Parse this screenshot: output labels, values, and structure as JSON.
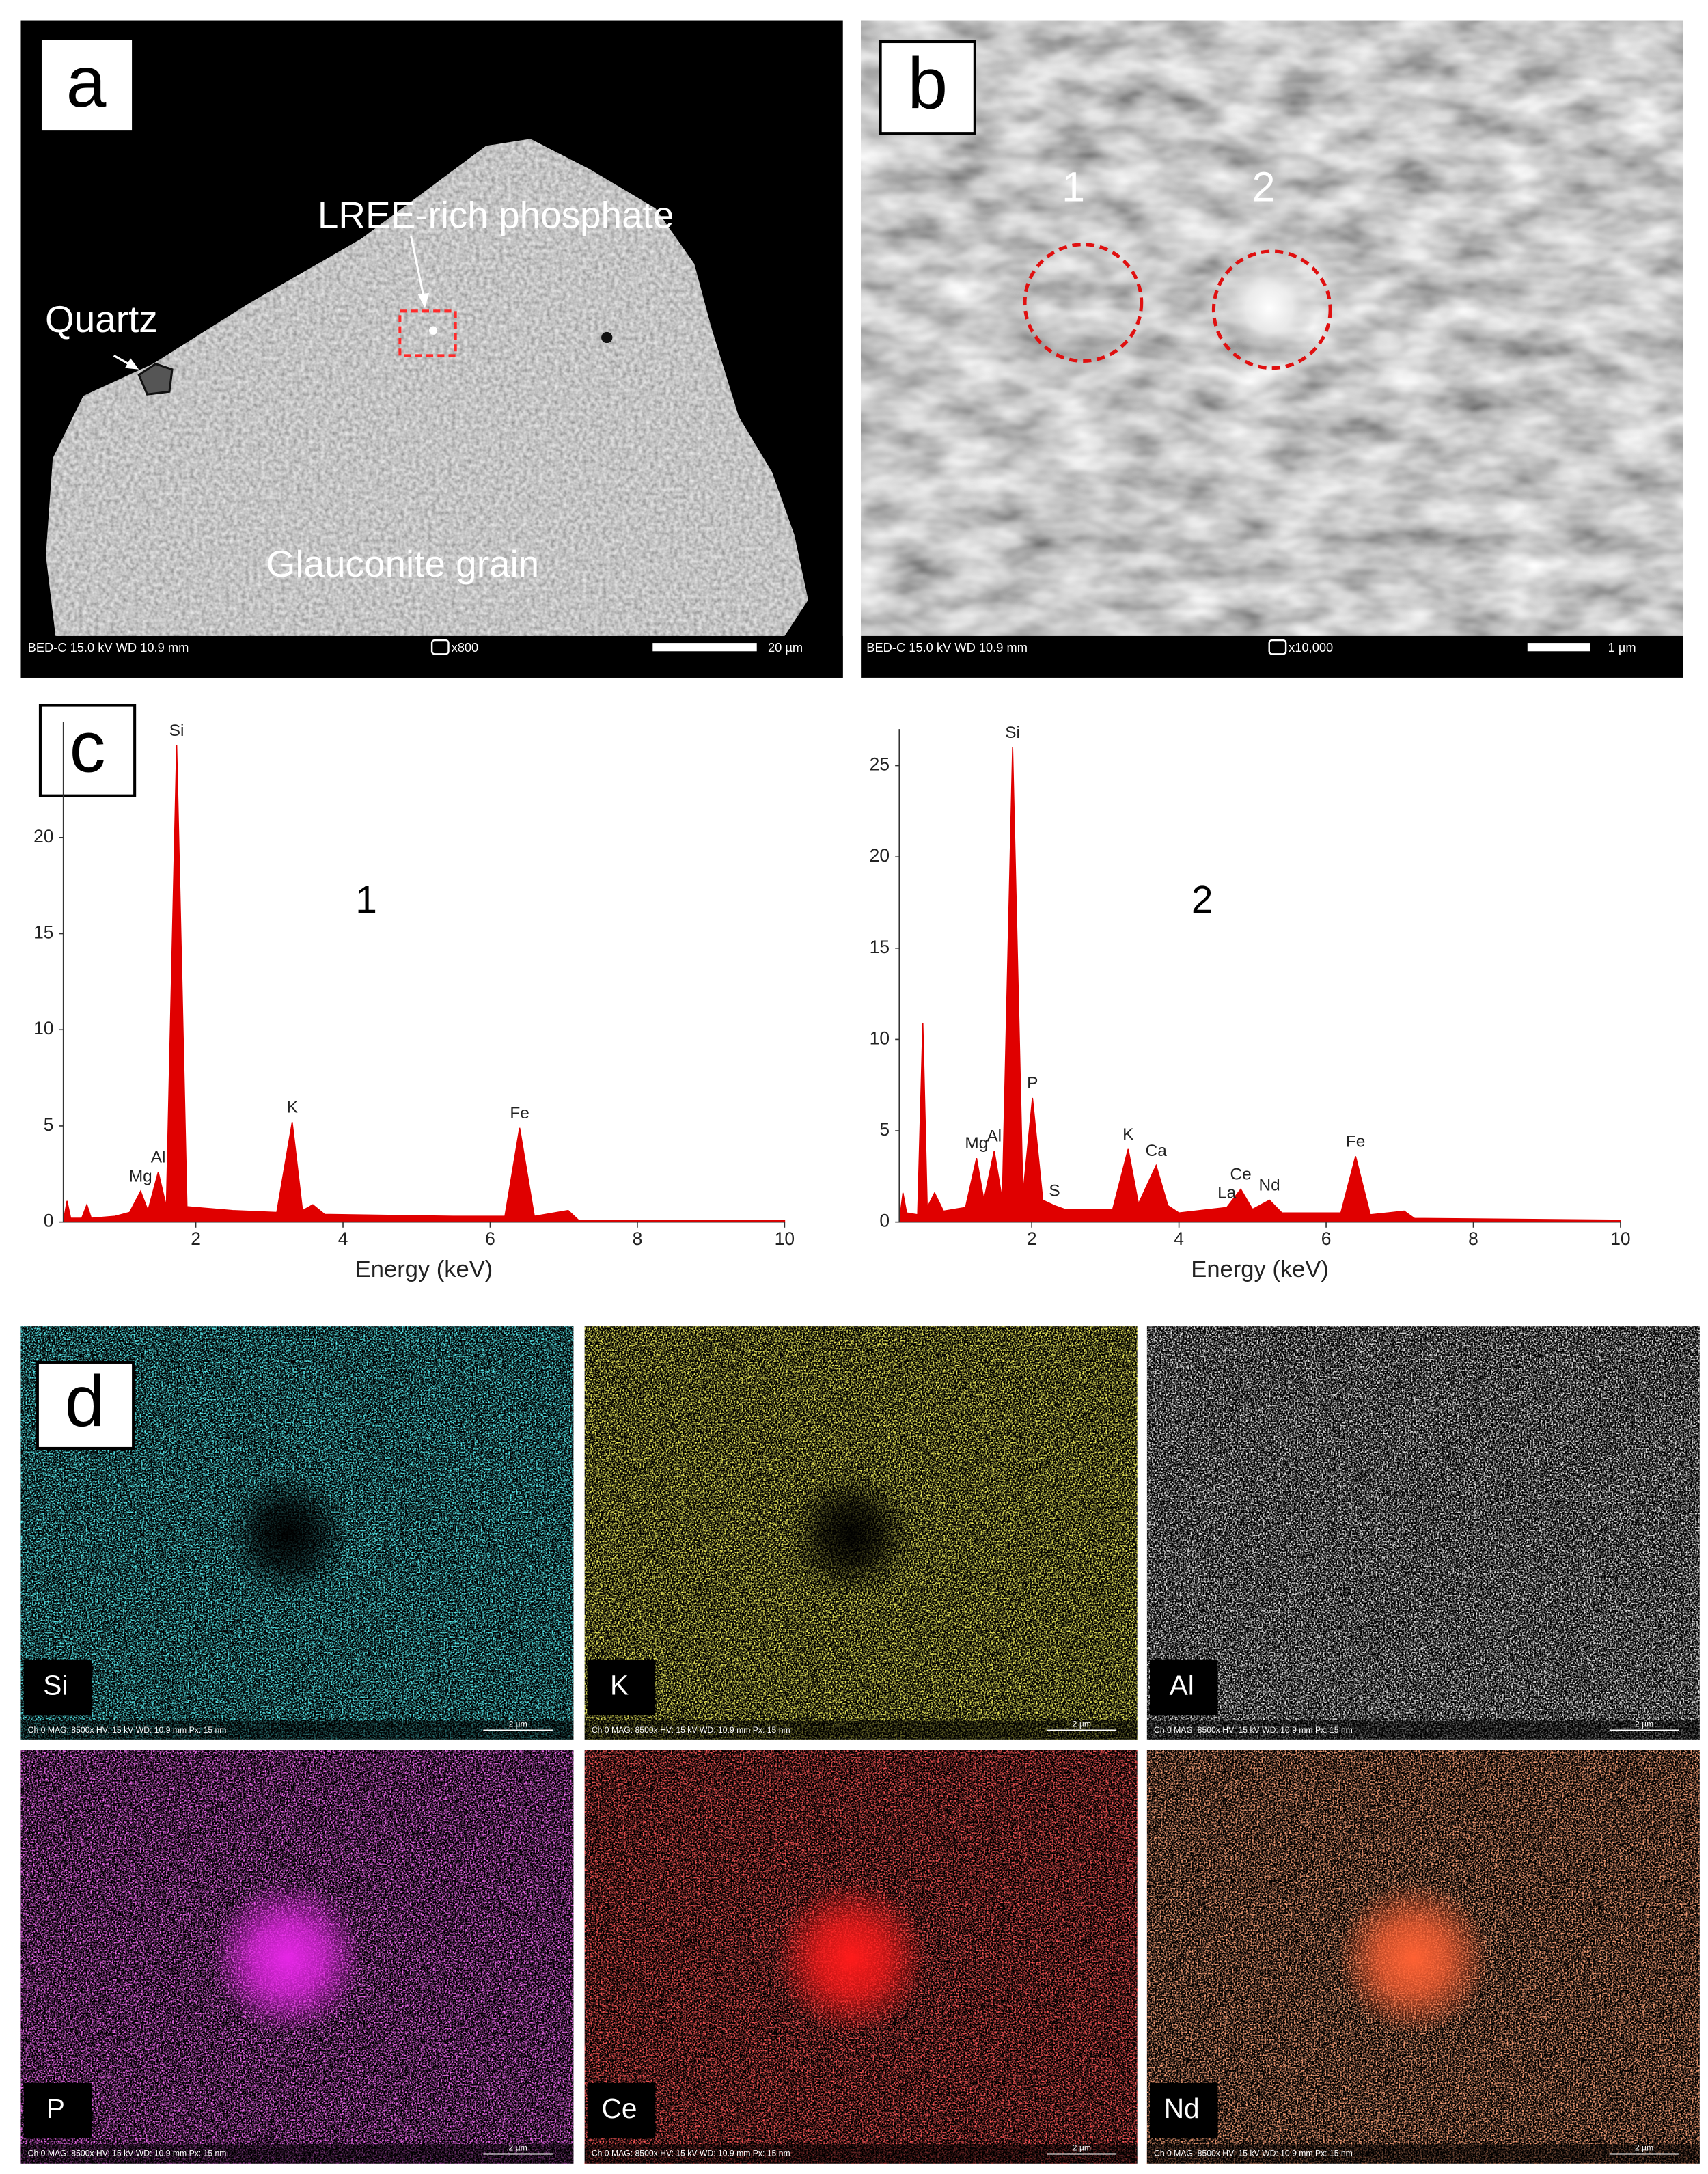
{
  "panels": {
    "a": {
      "label": "a",
      "annotations": [
        "LREE-rich phosphate",
        "Quartz",
        "Glauconite grain"
      ],
      "footer": {
        "info": "BED-C  15.0 kV  WD 10.9 mm",
        "magnification": "x800",
        "scale": "20 µm"
      }
    },
    "b": {
      "label": "b",
      "spots": [
        "1",
        "2"
      ],
      "footer": {
        "info": "BED-C  15.0 kV  WD 10.9 mm",
        "magnification": "x10,000",
        "scale": "1 µm"
      }
    },
    "c": {
      "label": "c"
    },
    "d": {
      "label": "d",
      "maps": [
        {
          "element": "Si",
          "footer": "Ch 0   MAG: 8500x   HV: 15 kV   WD: 10.9 mm   Px: 15 nm",
          "scale": "2 µm"
        },
        {
          "element": "K",
          "footer": "Ch 0   MAG: 8500x   HV: 15 kV   WD: 10.9 mm   Px: 15 nm",
          "scale": "2 µm"
        },
        {
          "element": "Al",
          "footer": "Ch 0   MAG: 8500x   HV: 15 kV   WD: 10.9 mm   Px: 15 nm",
          "scale": "2 µm"
        },
        {
          "element": "P",
          "footer": "Ch 0   MAG: 8500x   HV: 15 kV   WD: 10.9 mm   Px: 15 nm",
          "scale": "2 µm"
        },
        {
          "element": "Ce",
          "footer": "Ch 0   MAG: 8500x   HV: 15 kV   WD: 10.9 mm   Px: 15 nm",
          "scale": "2 µm"
        },
        {
          "element": "Nd",
          "footer": "Ch 0   MAG: 8500x   HV: 15 kV   WD: 10.9 mm   Px: 15 nm",
          "scale": "2 µm"
        }
      ]
    }
  },
  "chart_data": [
    {
      "type": "area",
      "title": "1",
      "xlabel": "Energy (keV)",
      "color": "#e00000",
      "x": [
        0.2,
        0.25,
        0.3,
        0.45,
        0.52,
        0.58,
        0.9,
        1.1,
        1.25,
        1.35,
        1.49,
        1.6,
        1.74,
        1.88,
        2.5,
        3.1,
        3.31,
        3.45,
        3.59,
        3.75,
        5.5,
        6.2,
        6.4,
        6.6,
        7.06,
        7.2,
        10
      ],
      "values": [
        0,
        1.1,
        0.2,
        0.2,
        0.9,
        0.2,
        0.3,
        0.5,
        1.6,
        0.6,
        2.6,
        0.8,
        24.8,
        0.8,
        0.6,
        0.5,
        5.2,
        0.6,
        0.9,
        0.4,
        0.3,
        0.3,
        4.9,
        0.3,
        0.6,
        0.1,
        0.1
      ],
      "xlim": [
        0.2,
        10
      ],
      "ylim": [
        0,
        26
      ],
      "xticks": [
        2,
        4,
        6,
        8,
        10
      ],
      "yticks": [
        0,
        5,
        10,
        15,
        20
      ],
      "peaks": [
        {
          "label": "Mg",
          "energy": 1.25
        },
        {
          "label": "Al",
          "energy": 1.49
        },
        {
          "label": "Si",
          "energy": 1.74
        },
        {
          "label": "K",
          "energy": 3.31
        },
        {
          "label": "Fe",
          "energy": 6.4
        }
      ]
    },
    {
      "type": "area",
      "title": "2",
      "xlabel": "Energy (keV)",
      "color": "#e00000",
      "x": [
        0.2,
        0.25,
        0.3,
        0.45,
        0.52,
        0.58,
        0.68,
        0.8,
        1.1,
        1.25,
        1.35,
        1.49,
        1.6,
        1.74,
        1.88,
        2.01,
        2.15,
        2.31,
        2.45,
        3.1,
        3.31,
        3.45,
        3.69,
        3.85,
        4.0,
        4.65,
        4.84,
        5.0,
        5.23,
        5.4,
        6.2,
        6.4,
        6.6,
        7.06,
        7.2,
        10
      ],
      "values": [
        0,
        1.6,
        0.5,
        0.4,
        10.9,
        0.8,
        1.6,
        0.6,
        0.8,
        3.5,
        1.2,
        3.9,
        1.2,
        26,
        1.5,
        6.8,
        1.2,
        0.9,
        0.7,
        0.7,
        4.0,
        1.0,
        3.1,
        0.9,
        0.5,
        0.8,
        1.8,
        0.7,
        1.2,
        0.5,
        0.5,
        3.6,
        0.4,
        0.6,
        0.2,
        0.1
      ],
      "xlim": [
        0.2,
        10
      ],
      "ylim": [
        0,
        27
      ],
      "xticks": [
        2,
        4,
        6,
        8,
        10
      ],
      "yticks": [
        0,
        5,
        10,
        15,
        20,
        25
      ],
      "peaks": [
        {
          "label": "Mg",
          "energy": 1.25
        },
        {
          "label": "Al",
          "energy": 1.49
        },
        {
          "label": "Si",
          "energy": 1.74
        },
        {
          "label": "P",
          "energy": 2.01
        },
        {
          "label": "S",
          "energy": 2.31
        },
        {
          "label": "K",
          "energy": 3.31
        },
        {
          "label": "Ca",
          "energy": 3.69
        },
        {
          "label": "La",
          "energy": 4.65
        },
        {
          "label": "Ce",
          "energy": 4.84
        },
        {
          "label": "Nd",
          "energy": 5.23
        },
        {
          "label": "Fe",
          "energy": 6.4
        }
      ]
    }
  ]
}
